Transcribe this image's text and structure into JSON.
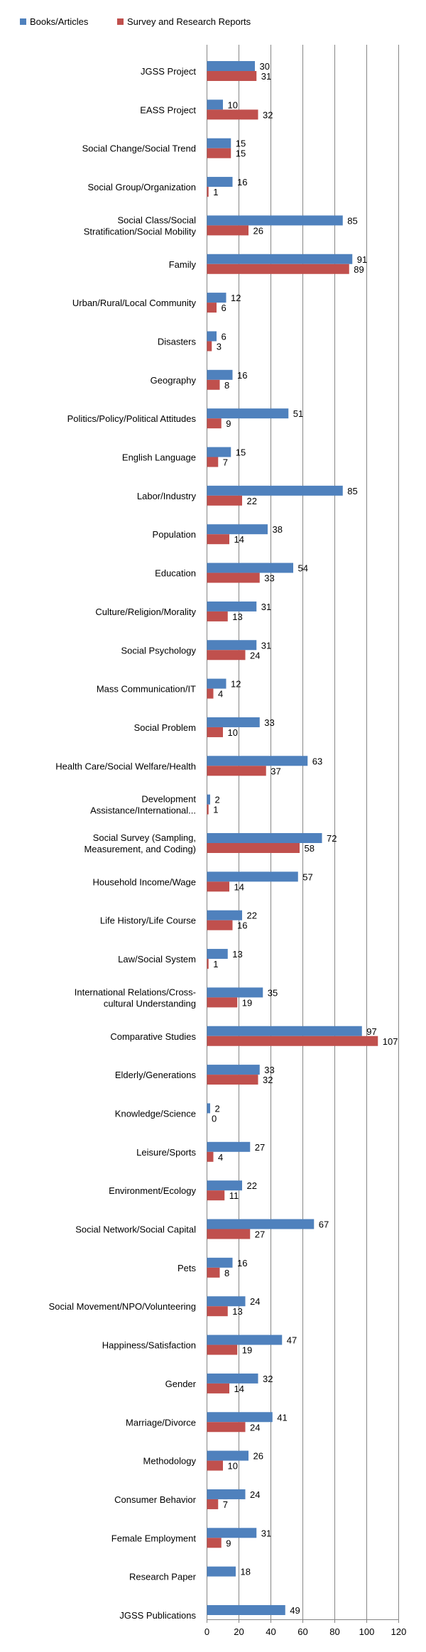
{
  "chart_data": {
    "type": "bar",
    "orientation": "horizontal",
    "title": "",
    "xlabel": "",
    "ylabel": "",
    "xlim": [
      0,
      120
    ],
    "x_ticks": [
      "0",
      "20",
      "40",
      "60",
      "80",
      "100",
      "120"
    ],
    "grid": true,
    "legend_position": "top",
    "categories": [
      "JGSS Project",
      "EASS Project",
      "Social Change/Social Trend",
      "Social Group/Organization",
      "Social Class/Social Stratification/Social Mobility",
      "Family",
      "Urban/Rural/Local Community",
      "Disasters",
      "Geography",
      "Politics/Policy/Political Attitudes",
      "English Language",
      "Labor/Industry",
      "Population",
      "Education",
      "Culture/Religion/Morality",
      "Social Psychology",
      "Mass Communication/IT",
      "Social Problem",
      "Health Care/Social Welfare/Health",
      "Development Assistance/International...",
      "Social Survey (Sampling, Measurement, and Coding)",
      "Household Income/Wage",
      "Life History/Life Course",
      "Law/Social System",
      "International Relations/Cross-cultural Understanding",
      "Comparative Studies",
      "Elderly/Generations",
      "Knowledge/Science",
      "Leisure/Sports",
      "Environment/Ecology",
      "Social Network/Social Capital",
      "Pets",
      "Social Movement/NPO/Volunteering",
      "Happiness/Satisfaction",
      "Gender",
      "Marriage/Divorce",
      "Methodology",
      "Consumer Behavior",
      "Female Employment",
      "Research Paper",
      "JGSS Publications"
    ],
    "category_lines": [
      [
        "JGSS Project"
      ],
      [
        "EASS Project"
      ],
      [
        "Social Change/Social Trend"
      ],
      [
        "Social Group/Organization"
      ],
      [
        "Social Class/Social",
        "Stratification/Social Mobility"
      ],
      [
        "Family"
      ],
      [
        "Urban/Rural/Local Community"
      ],
      [
        "Disasters"
      ],
      [
        "Geography"
      ],
      [
        "Politics/Policy/Political Attitudes"
      ],
      [
        "English Language"
      ],
      [
        "Labor/Industry"
      ],
      [
        "Population"
      ],
      [
        "Education"
      ],
      [
        "Culture/Religion/Morality"
      ],
      [
        "Social Psychology"
      ],
      [
        "Mass Communication/IT"
      ],
      [
        "Social Problem"
      ],
      [
        "Health Care/Social Welfare/Health"
      ],
      [
        "Development",
        "Assistance/International..."
      ],
      [
        "Social Survey (Sampling,",
        "Measurement, and Coding)"
      ],
      [
        "Household Income/Wage"
      ],
      [
        "Life History/Life Course"
      ],
      [
        "Law/Social System"
      ],
      [
        "International Relations/Cross-",
        "cultural Understanding"
      ],
      [
        "Comparative Studies"
      ],
      [
        "Elderly/Generations"
      ],
      [
        "Knowledge/Science"
      ],
      [
        "Leisure/Sports"
      ],
      [
        "Environment/Ecology"
      ],
      [
        "Social Network/Social Capital"
      ],
      [
        "Pets"
      ],
      [
        "Social Movement/NPO/Volunteering"
      ],
      [
        "Happiness/Satisfaction"
      ],
      [
        "Gender"
      ],
      [
        "Marriage/Divorce"
      ],
      [
        "Methodology"
      ],
      [
        "Consumer Behavior"
      ],
      [
        "Female Employment"
      ],
      [
        "Research Paper"
      ],
      [
        "JGSS Publications"
      ]
    ],
    "series": [
      {
        "name": "Books/Articles",
        "color": "#4F81BD",
        "values": [
          30,
          10,
          15,
          16,
          85,
          91,
          12,
          6,
          16,
          51,
          15,
          85,
          38,
          54,
          31,
          31,
          12,
          33,
          63,
          2,
          72,
          57,
          22,
          13,
          35,
          97,
          33,
          2,
          27,
          22,
          67,
          16,
          24,
          47,
          32,
          41,
          26,
          24,
          31,
          18,
          49
        ]
      },
      {
        "name": "Survey and Research Reports",
        "color": "#C0504D",
        "values": [
          31,
          32,
          15,
          1,
          26,
          89,
          6,
          3,
          8,
          9,
          7,
          22,
          14,
          33,
          13,
          24,
          4,
          10,
          37,
          1,
          58,
          14,
          16,
          1,
          19,
          107,
          32,
          0,
          4,
          11,
          27,
          8,
          13,
          19,
          14,
          24,
          10,
          7,
          9,
          null,
          null
        ]
      }
    ]
  }
}
